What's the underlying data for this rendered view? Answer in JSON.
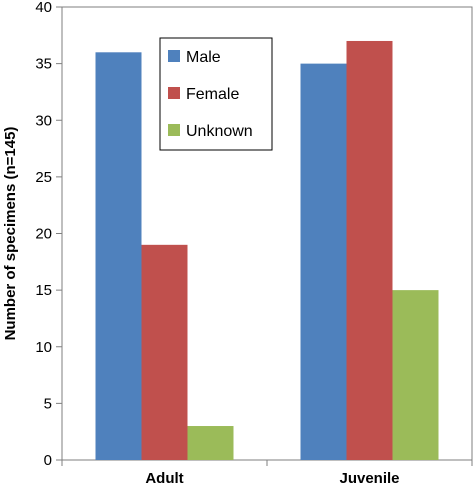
{
  "chart_data": {
    "type": "bar",
    "categories": [
      "Adult",
      "Juvenile"
    ],
    "series": [
      {
        "name": "Male",
        "values": [
          36,
          35
        ],
        "color": "#4F81BD"
      },
      {
        "name": "Female",
        "values": [
          19,
          37
        ],
        "color": "#C0504D"
      },
      {
        "name": "Unknown",
        "values": [
          3,
          15
        ],
        "color": "#9BBB59"
      }
    ],
    "title": "",
    "xlabel": "",
    "ylabel": "Number of specimens (n=145)",
    "ylim": [
      0,
      40
    ],
    "yticks": [
      0,
      5,
      10,
      15,
      20,
      25,
      30,
      35,
      40
    ],
    "grid": false,
    "legend_position": "top-center"
  }
}
